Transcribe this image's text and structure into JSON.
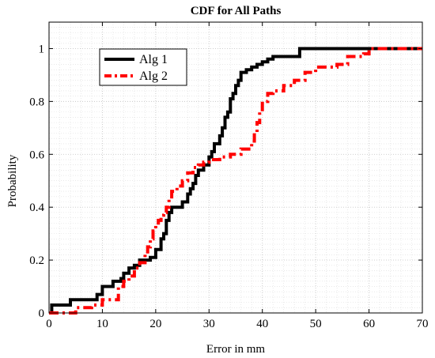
{
  "chart_data": {
    "type": "line",
    "title": "CDF for All Paths",
    "xlabel": "Error in mm",
    "ylabel": "Probability",
    "xlim": [
      0,
      70
    ],
    "ylim": [
      0,
      1.1
    ],
    "xticks": [
      0,
      10,
      20,
      30,
      40,
      50,
      60,
      70
    ],
    "yticks": [
      0,
      0.2,
      0.4,
      0.6,
      0.8,
      1
    ],
    "ytick_labels": [
      "0",
      "0.2",
      "0.4",
      "0.6",
      "0.8",
      "1"
    ],
    "grid": "major and minor",
    "legend_position": "top-left",
    "series": [
      {
        "name": "Alg 1",
        "color": "#000000",
        "style": "solid",
        "x": [
          0,
          0.5,
          4,
          9,
          10,
          12,
          13.5,
          14,
          15,
          16,
          17,
          18,
          19,
          20,
          21,
          21.5,
          22,
          22.5,
          23,
          24,
          25,
          26,
          26.5,
          27,
          27.5,
          28,
          29,
          30,
          30.5,
          31,
          32,
          32.5,
          33,
          33.5,
          34,
          34.5,
          35,
          35.5,
          36,
          37,
          38,
          39,
          40,
          41,
          42,
          46,
          47,
          50,
          60,
          70
        ],
        "y": [
          0,
          0.03,
          0.05,
          0.07,
          0.1,
          0.12,
          0.13,
          0.15,
          0.17,
          0.18,
          0.2,
          0.2,
          0.21,
          0.24,
          0.28,
          0.3,
          0.35,
          0.38,
          0.4,
          0.4,
          0.42,
          0.45,
          0.47,
          0.49,
          0.52,
          0.54,
          0.56,
          0.59,
          0.61,
          0.64,
          0.67,
          0.7,
          0.74,
          0.76,
          0.81,
          0.83,
          0.86,
          0.88,
          0.91,
          0.92,
          0.93,
          0.94,
          0.95,
          0.96,
          0.97,
          0.97,
          1.0,
          1.0,
          1.0,
          1.0
        ]
      },
      {
        "name": "Alg 2",
        "color": "#ff0000",
        "style": "dashed",
        "x": [
          0,
          4,
          5,
          8,
          10,
          13,
          14,
          15,
          16,
          17,
          18,
          18.5,
          19,
          19.5,
          20,
          20.5,
          21,
          21.5,
          22,
          22.5,
          23,
          24,
          25,
          26,
          27,
          28,
          29,
          30,
          32,
          34,
          36,
          38,
          38.5,
          39,
          39.5,
          40,
          41,
          42,
          44,
          46,
          48,
          50,
          54,
          56,
          59,
          60,
          70
        ],
        "y": [
          0,
          0,
          0.02,
          0.03,
          0.05,
          0.1,
          0.12,
          0.14,
          0.17,
          0.19,
          0.22,
          0.25,
          0.28,
          0.31,
          0.33,
          0.35,
          0.37,
          0.38,
          0.4,
          0.43,
          0.46,
          0.48,
          0.5,
          0.53,
          0.55,
          0.56,
          0.57,
          0.58,
          0.59,
          0.6,
          0.62,
          0.65,
          0.68,
          0.72,
          0.76,
          0.8,
          0.83,
          0.84,
          0.86,
          0.88,
          0.91,
          0.93,
          0.94,
          0.97,
          0.98,
          1.0,
          1.0
        ]
      }
    ]
  }
}
